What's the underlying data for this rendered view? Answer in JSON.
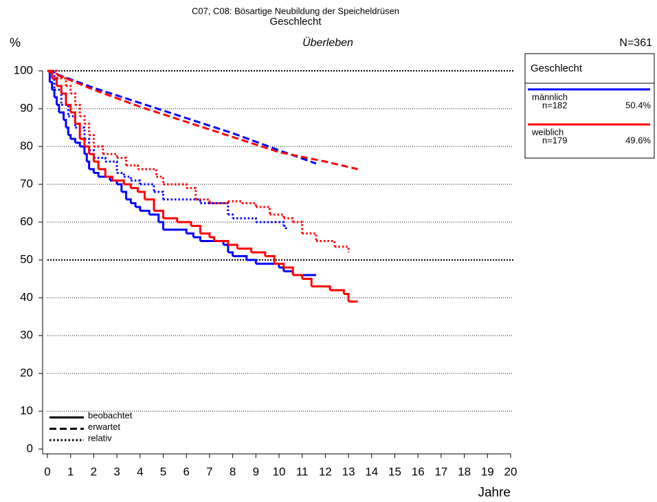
{
  "chart_data": {
    "type": "survival",
    "title": "C07, C08: Bösartige Neubildung der Speicheldrüsen",
    "subtitle": "Geschlecht",
    "caption": "Überleben",
    "y_label": "%",
    "x_label": "Jahre",
    "total_label": "N=361",
    "legend_title": "Geschlecht",
    "xlim": [
      0,
      20
    ],
    "ylim": [
      0,
      100
    ],
    "xticks": [
      0,
      1,
      2,
      3,
      4,
      5,
      6,
      7,
      8,
      9,
      10,
      11,
      12,
      13,
      14,
      15,
      16,
      17,
      18,
      19,
      20
    ],
    "yticks": [
      0,
      10,
      20,
      30,
      40,
      50,
      60,
      70,
      80,
      90,
      100
    ],
    "grid": true,
    "grid_emphasis": [
      50,
      100
    ],
    "line_styles": [
      {
        "label": "beobachtet",
        "dash": "solid",
        "steps": true
      },
      {
        "label": "erwartet",
        "dash": "dashed",
        "steps": false
      },
      {
        "label": "relativ",
        "dash": "dotted",
        "steps": true
      }
    ],
    "groups": [
      {
        "name": "männlich",
        "color": "#0000ff",
        "count_label": "n=182",
        "share_label": "50.4%",
        "curves": [
          {
            "x": [
              0,
              0.1,
              0.2,
              0.3,
              0.4,
              0.5,
              0.7,
              0.8,
              0.9,
              1,
              1.2,
              1.4,
              1.6,
              1.7,
              1.8,
              2,
              2.2,
              2.7,
              3,
              3.2,
              3.4,
              3.6,
              3.8,
              4,
              4.4,
              4.8,
              5,
              6,
              6.3,
              6.6,
              7.6,
              7.8,
              8,
              8.6,
              9,
              10,
              10.2,
              10.6,
              11.6
            ],
            "y": [
              100,
              97,
              95,
              93,
              91,
              89,
              87,
              85,
              83,
              82,
              81,
              80,
              78,
              76,
              74,
              73,
              72,
              71,
              70,
              68,
              66,
              65,
              64,
              63,
              62,
              60,
              58,
              57,
              56,
              55,
              54,
              52,
              51,
              50,
              49,
              48,
              47,
              46,
              46
            ]
          },
          {
            "x": [
              0,
              2,
              4,
              6,
              8,
              10,
              11.6
            ],
            "y": [
              100,
              95.5,
              91.5,
              87.5,
              83.5,
              79,
              75.5
            ]
          },
          {
            "x": [
              0,
              0.3,
              0.6,
              0.9,
              1.2,
              1.6,
              1.8,
              2,
              2.5,
              3,
              3.3,
              3.6,
              4,
              4.6,
              5,
              6.6,
              7.8,
              8,
              9,
              10.2,
              10.3
            ],
            "y": [
              100,
              95,
              91,
              88,
              85,
              82,
              79,
              77,
              76,
              73,
              72,
              71,
              70,
              68,
              66,
              65,
              62,
              61,
              60,
              59,
              58
            ]
          }
        ]
      },
      {
        "name": "weiblich",
        "color": "#ff0000",
        "count_label": "n=179",
        "share_label": "49.6%",
        "curves": [
          {
            "x": [
              0,
              0.2,
              0.4,
              0.6,
              0.8,
              1,
              1.2,
              1.4,
              1.6,
              1.8,
              2,
              2.2,
              2.5,
              2.8,
              3.3,
              3.6,
              3.9,
              4.2,
              4.6,
              5,
              5.6,
              6.2,
              6.6,
              7,
              7.2,
              7.8,
              8.2,
              8.8,
              9.4,
              9.8,
              10.2,
              10.6,
              11,
              11.4,
              12.2,
              12.8,
              13,
              13.4
            ],
            "y": [
              100,
              98,
              96,
              94,
              91,
              89,
              86,
              82,
              80,
              78,
              76,
              74,
              72,
              71,
              70,
              69,
              68,
              66,
              63,
              61,
              60,
              59,
              57,
              56,
              55,
              54,
              53,
              52,
              51,
              49,
              48,
              46,
              45,
              43,
              42,
              41,
              39,
              39
            ]
          },
          {
            "x": [
              0,
              2,
              4,
              6,
              8,
              10,
              12,
              13.4
            ],
            "y": [
              100,
              95,
              90.5,
              86.5,
              82.5,
              78.5,
              76,
              74
            ]
          },
          {
            "x": [
              0,
              0.4,
              0.8,
              1,
              1.2,
              1.4,
              1.6,
              1.8,
              2,
              2.4,
              3,
              3.4,
              3.9,
              4.7,
              5,
              6,
              6.4,
              7,
              7.8,
              8.4,
              9,
              9.6,
              10.2,
              10.6,
              11,
              11.6,
              12.4,
              13
            ],
            "y": [
              100,
              98,
              96,
              94,
              91,
              88,
              86,
              83,
              80,
              78,
              77,
              75,
              74,
              72,
              70,
              69,
              66,
              65,
              65.5,
              65,
              64,
              62,
              61,
              60,
              57,
              55,
              53.5,
              52
            ]
          }
        ]
      }
    ]
  }
}
